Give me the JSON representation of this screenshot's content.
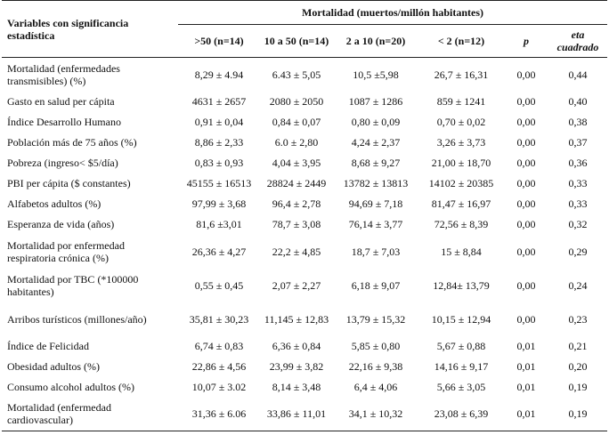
{
  "table": {
    "header": {
      "variable_label": "Variables con significancia estadística",
      "mortality_label": "Mortalidad (muertos/millón habitantes)",
      "columns": [
        ">50 (n=14)",
        "10 a 50 (n=14)",
        "2 a 10 (n=20)",
        "< 2 (n=12)",
        "p",
        "eta cuadrado"
      ]
    },
    "rows": [
      {
        "name": "Mortalidad (enfermedades transmisibles) (%)",
        "v1": "8,29 ± 4.94",
        "v2": "6.43 ± 5,05",
        "v3": "10,5 ±5,98",
        "v4": "26,7 ± 16,31",
        "p": "0,00",
        "eta": "0,44"
      },
      {
        "name": "Gasto en salud per cápita",
        "v1": "4631 ± 2657",
        "v2": "2080 ± 2050",
        "v3": "1087 ± 1286",
        "v4": "859 ± 1241",
        "p": "0,00",
        "eta": "0,40"
      },
      {
        "name": "Índice Desarrollo Humano",
        "v1": "0,91 ± 0,04",
        "v2": "0,84 ± 0,07",
        "v3": "0,80 ± 0,09",
        "v4": "0,70 ± 0,02",
        "p": "0,00",
        "eta": "0,38"
      },
      {
        "name": "Población más de 75 años (%)",
        "v1": "8,86 ± 2,33",
        "v2": "6.0 ± 2,80",
        "v3": "4,24 ± 2,37",
        "v4": "3,26 ± 3,73",
        "p": "0,00",
        "eta": "0,37"
      },
      {
        "name": "Pobreza (ingreso< $5/día)",
        "v1": "0,83 ± 0,93",
        "v2": "4,04 ± 3,95",
        "v3": "8,68 ± 9,27",
        "v4": "21,00 ± 18,70",
        "p": "0,00",
        "eta": "0,36"
      },
      {
        "name": "PBI per cápita ($ constantes)",
        "v1": "45155 ± 16513",
        "v2": "28824 ± 2449",
        "v3": "13782 ± 13813",
        "v4": "14102 ± 20385",
        "p": "0,00",
        "eta": "0,33"
      },
      {
        "name": "Alfabetos adultos (%)",
        "v1": "97,99 ± 3,68",
        "v2": "96,4 ± 2,78",
        "v3": "94,69 ± 7,18",
        "v4": "81,47 ± 16,97",
        "p": "0,00",
        "eta": "0,33"
      },
      {
        "name": "Esperanza de vida (años)",
        "v1": "81,6 ±3,01",
        "v2": "78,7 ± 3,08",
        "v3": "76,14 ± 3,77",
        "v4": "72,56 ± 8,39",
        "p": "0,00",
        "eta": "0,32"
      },
      {
        "name": "Mortalidad por enfermedad respiratoria crónica (%)",
        "v1": "26,36 ± 4,27",
        "v2": "22,2 ± 4,85",
        "v3": "18,7 ± 7,03",
        "v4": "15 ± 8,84",
        "p": "0,00",
        "eta": "0,29"
      },
      {
        "name": "Mortalidad por TBC (*100000 habitantes)",
        "v1": "0,55 ± 0,45",
        "v2": "2,07 ± 2,27",
        "v3": "6,18 ± 9,07",
        "v4": "12,84± 13,79",
        "p": "0,00",
        "eta": "0,24"
      },
      {
        "name": "Arribos turísticos (millones/año)",
        "v1": "35,81 ± 30,23",
        "v2": "11,145 ± 12,83",
        "v3": "13,79 ± 15,32",
        "v4": "10,15 ± 12,94",
        "p": "0,00",
        "eta": "0,23"
      },
      {
        "name": "Índice de Felicidad",
        "v1": "6,74 ± 0,83",
        "v2": "6,36 ± 0,84",
        "v3": "5,85 ± 0,80",
        "v4": "5,67 ± 0,88",
        "p": "0,01",
        "eta": "0,21"
      },
      {
        "name": "Obesidad adultos (%)",
        "v1": "22,86 ± 4,56",
        "v2": "23,99 ± 3,82",
        "v3": "22,16 ± 9,38",
        "v4": "14,16 ± 9,17",
        "p": "0,01",
        "eta": "0,20"
      },
      {
        "name": "Consumo alcohol adultos (%)",
        "v1": "10,07 ± 3.02",
        "v2": "8,14 ± 3,48",
        "v3": "6,4 ± 4,06",
        "v4": "5,66 ± 3,05",
        "p": "0,01",
        "eta": "0,19"
      },
      {
        "name": "Mortalidad (enfermedad cardiovascular)",
        "v1": "31,36 ± 6.06",
        "v2": "33,86 ± 11,01",
        "v3": "34,1 ± 10,32",
        "v4": "23,08 ± 6,39",
        "p": "0,01",
        "eta": "0,19"
      }
    ]
  }
}
